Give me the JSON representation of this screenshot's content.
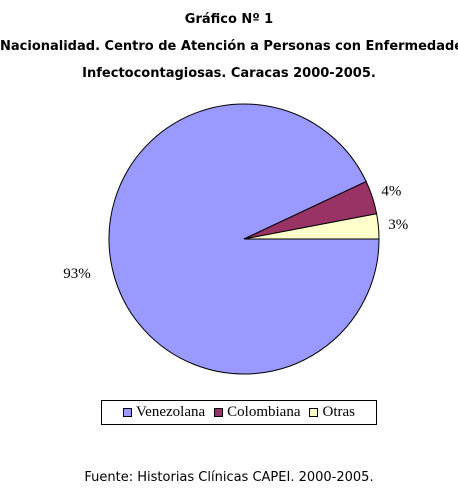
{
  "chart_data": {
    "type": "pie",
    "title_lines": [
      "Gráfico Nº 1",
      "Nacionalidad. Centro de Atención a Personas con Enfermedades",
      "Infectocontagiosas. Caracas 2000-2005."
    ],
    "slices": [
      {
        "name": "Venezolana",
        "value": 93,
        "label": "93%",
        "color": "#9999ff"
      },
      {
        "name": "Colombiana",
        "value": 4,
        "label": "4%",
        "color": "#993366"
      },
      {
        "name": "Otras",
        "value": 3,
        "label": "3%",
        "color": "#ffffcc"
      }
    ],
    "legend_position": "bottom",
    "source": "Fuente: Historias Clínicas CAPEI. 2000-2005."
  }
}
